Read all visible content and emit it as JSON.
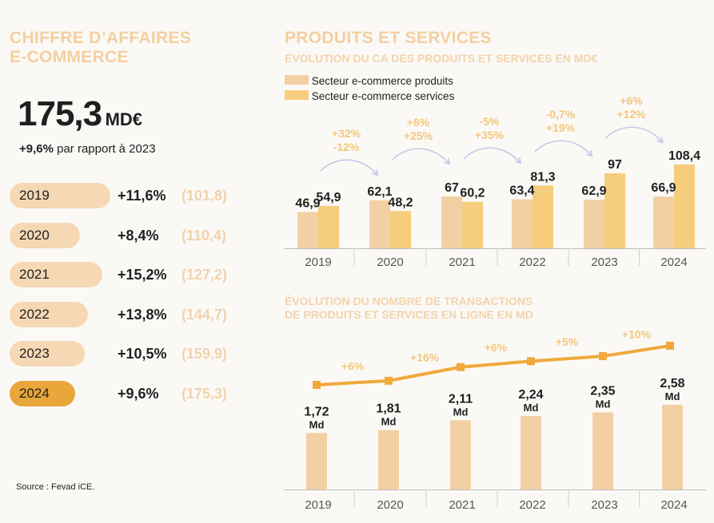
{
  "left": {
    "title_line1": "CHIFFRE D’AFFAIRES",
    "title_line2": "E-COMMERCE",
    "total_value": "175,3",
    "total_unit": "MD€",
    "growth": "+9,6%",
    "growth_text": "par rapport à 2023",
    "rows": [
      {
        "year": "2019",
        "pct": "+11,6%",
        "total": "(101,8)",
        "active": false
      },
      {
        "year": "2020",
        "pct": "+8,4%",
        "total": "(110,4)",
        "active": false
      },
      {
        "year": "2021",
        "pct": "+15,2%",
        "total": "(127,2)",
        "active": false
      },
      {
        "year": "2022",
        "pct": "+13,8%",
        "total": "(144,7)",
        "active": false
      },
      {
        "year": "2023",
        "pct": "+10,5%",
        "total": "(159,9)",
        "active": false
      },
      {
        "year": "2024",
        "pct": "+9,6%",
        "total": "(175,3)",
        "active": true
      }
    ],
    "source": "Source : Fevad iCE."
  },
  "right": {
    "title": "PRODUITS ET SERVICES",
    "subtitle1": "ÉVOLUTION DU CA DES PRODUITS ET SERVICES EN MD€",
    "subtitle2_line1": "ÉVOLUTION DU NOMBRE DE TRANSACTIONS",
    "subtitle2_line2": "DE PRODUITS ET SERVICES EN LIGNE EN MD"
  },
  "colors": {
    "products": "#f2d0a4",
    "services": "#f6cd7c",
    "accent": "#e9a63a",
    "line": "#f0a93d",
    "title": "#f4cfa0",
    "arrow": "#c9c4e6"
  },
  "chart_data": [
    {
      "type": "bar",
      "title": "ÉVOLUTION DU CA DES PRODUITS ET SERVICES EN MD€",
      "categories": [
        "2019",
        "2020",
        "2021",
        "2022",
        "2023",
        "2024"
      ],
      "series": [
        {
          "name": "Secteur e-commerce produits",
          "values": [
            46.9,
            62.1,
            67,
            63.4,
            62.9,
            66.9
          ],
          "labels": [
            "46,9",
            "62,1",
            "67",
            "63,4",
            "62,9",
            "66,9"
          ]
        },
        {
          "name": "Secteur e-commerce services",
          "values": [
            54.9,
            48.2,
            60.2,
            81.3,
            97,
            108.4
          ],
          "labels": [
            "54,9",
            "48,2",
            "60,2",
            "81,3",
            "97",
            "108,4"
          ]
        }
      ],
      "changes": [
        {
          "from": "2019",
          "to": "2020",
          "products": "+32%",
          "services": "-12%"
        },
        {
          "from": "2020",
          "to": "2021",
          "products": "+8%",
          "services": "+25%"
        },
        {
          "from": "2021",
          "to": "2022",
          "products": "-5%",
          "services": "+35%"
        },
        {
          "from": "2022",
          "to": "2023",
          "products": "-0,7%",
          "services": "+19%"
        },
        {
          "from": "2023",
          "to": "2024",
          "products": "+6%",
          "services": "+12%"
        }
      ],
      "ylim": [
        0,
        120
      ]
    },
    {
      "type": "bar",
      "title": "ÉVOLUTION DU NOMBRE DE TRANSACTIONS DE PRODUITS ET SERVICES EN LIGNE EN MD",
      "categories": [
        "2019",
        "2020",
        "2021",
        "2022",
        "2023",
        "2024"
      ],
      "values": [
        1.72,
        1.81,
        2.11,
        2.24,
        2.35,
        2.58
      ],
      "labels": [
        "1,72",
        "1,81",
        "2,11",
        "2,24",
        "2,35",
        "2,58"
      ],
      "unit": "Md",
      "growth": [
        "+6%",
        "+16%",
        "+6%",
        "+5%",
        "+10%"
      ],
      "ylim": [
        0,
        4.2
      ]
    }
  ]
}
